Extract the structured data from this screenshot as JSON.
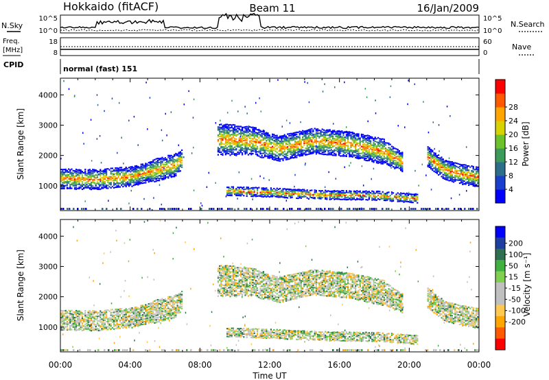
{
  "header": {
    "station": "Hokkaido (fitACF)",
    "beam": "Beam 11",
    "date": "16/Jan/2009"
  },
  "params_panel": {
    "nsky_label": "N.Sky",
    "nsearch_label": "N.Search",
    "noise_ticks": [
      "10^5",
      "10^0"
    ],
    "freq_label_1": "Freq.",
    "freq_label_2": "[MHz]",
    "freq_ticks": [
      "18",
      "8"
    ],
    "nave_label": "Nave",
    "nave_ticks": [
      "60",
      "0"
    ],
    "cpid_label": "CPID",
    "cpid_value": "normal (fast) 151"
  },
  "colors": {
    "power_scale": [
      "#0000ff",
      "#1a3fcc",
      "#2d6e8a",
      "#3c9a5a",
      "#6cc22a",
      "#d8d200",
      "#ffa500",
      "#ff5a00",
      "#ff0000"
    ],
    "velocity_scale": [
      "#ff0000",
      "#ff5a00",
      "#ffa500",
      "#ffc850",
      "#c0c0c0",
      "#c0c0c0",
      "#7fd050",
      "#40b040",
      "#2e7050",
      "#1f3fa0",
      "#0000ff"
    ]
  },
  "chart_data": [
    {
      "type": "heatmap",
      "name": "power",
      "ylabel": "Slant Range [km]",
      "xlabel": "",
      "x_ticks": [
        "00:00",
        "04:00",
        "08:00",
        "12:00",
        "16:00",
        "20:00",
        "00:00"
      ],
      "y_ticks": [
        1000,
        2000,
        3000,
        4000
      ],
      "ylim": [
        180,
        4550
      ],
      "xlim_hours": [
        0,
        24
      ],
      "colorbar": {
        "label": "Power [dB]",
        "ticks": [
          4,
          8,
          12,
          16,
          20,
          24,
          28
        ]
      },
      "bands": [
        {
          "name": "morning-band",
          "points": [
            [
              0.0,
              1250,
              300
            ],
            [
              2.0,
              1230,
              320
            ],
            [
              4.0,
              1320,
              300
            ],
            [
              5.5,
              1550,
              350
            ],
            [
              6.5,
              1700,
              350
            ],
            [
              7.0,
              1900,
              300
            ]
          ]
        },
        {
          "name": "afternoon-band",
          "points": [
            [
              9.0,
              2550,
              500
            ],
            [
              11.0,
              2500,
              450
            ],
            [
              12.5,
              2250,
              400
            ],
            [
              14.5,
              2500,
              400
            ],
            [
              16.5,
              2400,
              400
            ],
            [
              18.5,
              2150,
              400
            ],
            [
              19.6,
              1800,
              300
            ]
          ]
        },
        {
          "name": "near-range-band",
          "points": [
            [
              9.5,
              850,
              150
            ],
            [
              12.0,
              800,
              150
            ],
            [
              15.0,
              720,
              150
            ],
            [
              18.0,
              700,
              150
            ],
            [
              20.5,
              600,
              120
            ]
          ]
        },
        {
          "name": "late-band",
          "points": [
            [
              21.0,
              2000,
              300
            ],
            [
              22.0,
              1550,
              300
            ],
            [
              23.0,
              1400,
              300
            ],
            [
              24.0,
              1300,
              300
            ]
          ]
        }
      ]
    },
    {
      "type": "heatmap",
      "name": "velocity",
      "ylabel": "Slant Range [km]",
      "xlabel": "Time UT",
      "x_ticks": [
        "00:00",
        "04:00",
        "08:00",
        "12:00",
        "16:00",
        "20:00",
        "00:00"
      ],
      "y_ticks": [
        1000,
        2000,
        3000,
        4000
      ],
      "ylim": [
        180,
        4550
      ],
      "xlim_hours": [
        0,
        24
      ],
      "colorbar": {
        "label": "Velocity [m s⁻¹]",
        "ticks": [
          200,
          100,
          50,
          15,
          -15,
          -50,
          -100,
          -200
        ]
      }
    }
  ]
}
